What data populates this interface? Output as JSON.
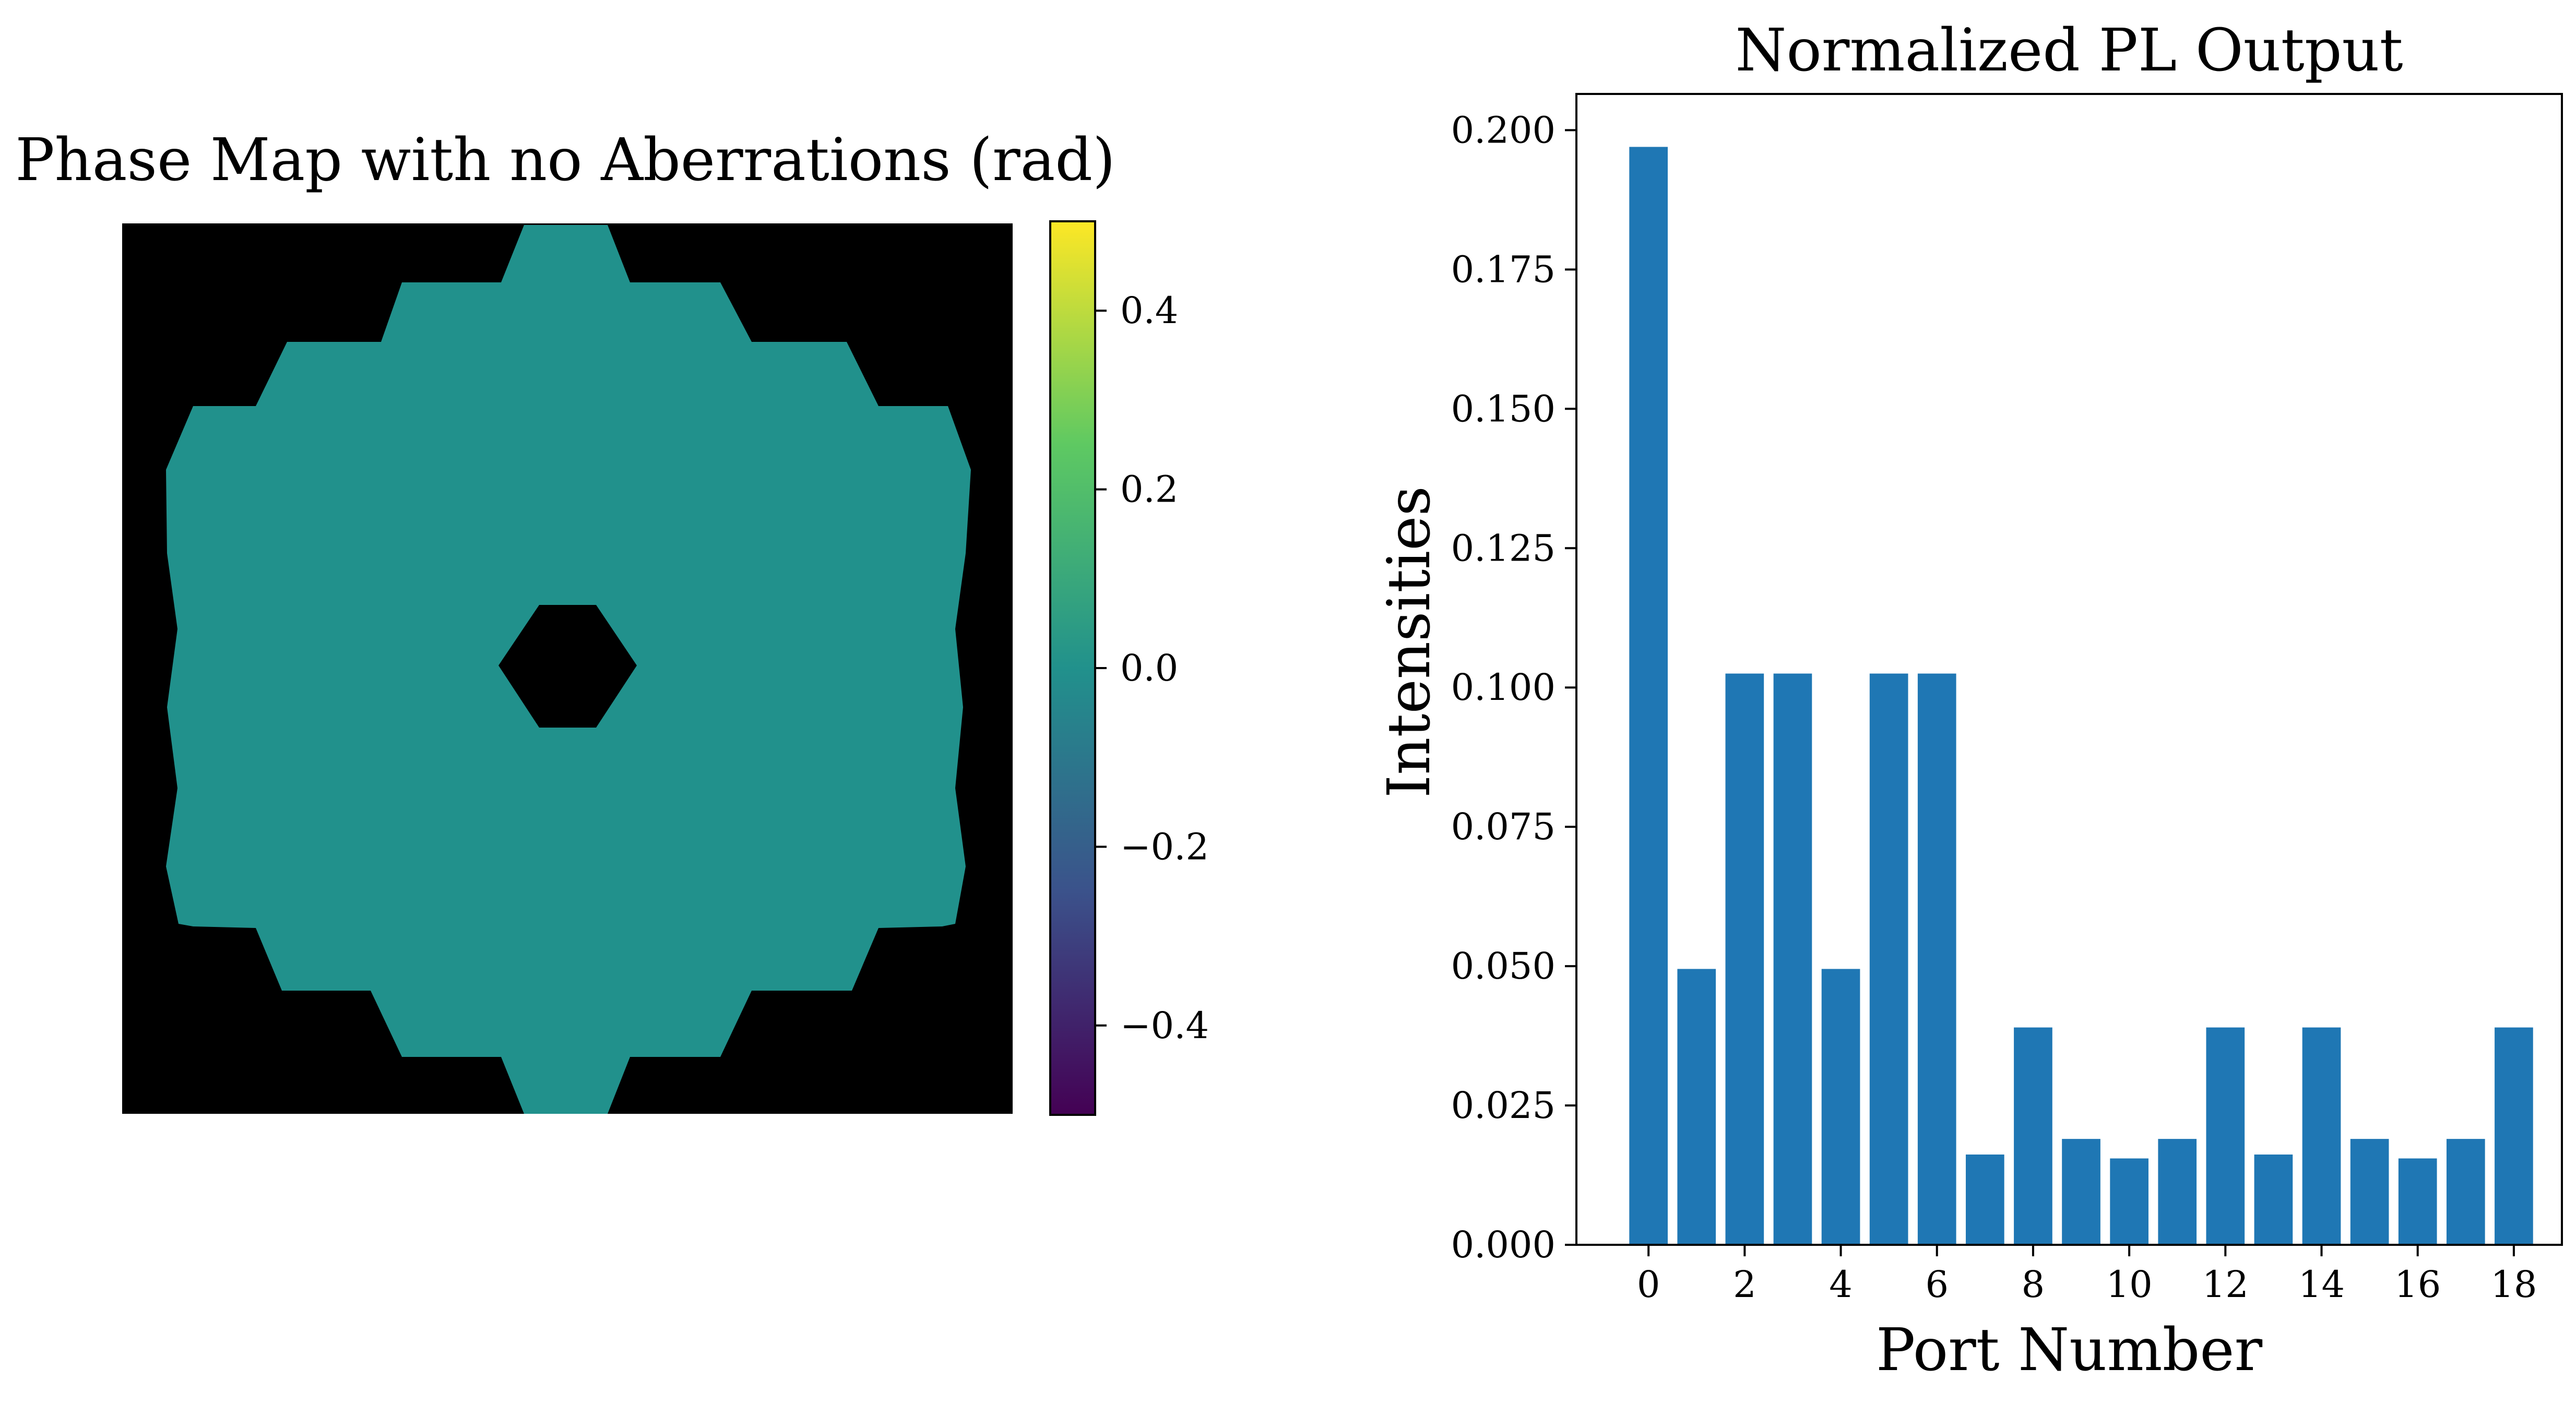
{
  "chart_data": [
    {
      "type": "heatmap",
      "title": "Phase Map with no Aberrations (rad)",
      "description_value": 0.0,
      "colorbar": {
        "colormap": "viridis",
        "range": [
          -0.5,
          0.5
        ],
        "ticks": [
          0.4,
          0.2,
          0.0,
          -0.2,
          -0.4
        ],
        "tick_labels": [
          "0.4",
          "0.2",
          "0.0",
          "−0.2",
          "−0.4"
        ]
      },
      "colors": {
        "pupil": "#21918c",
        "background": "#000000",
        "cmap_stops": [
          "#440154",
          "#3b528b",
          "#21918c",
          "#5ec962",
          "#fde725"
        ]
      }
    },
    {
      "type": "bar",
      "title": "Normalized PL Output",
      "xlabel": "Port Number",
      "ylabel": "Intensities",
      "categories": [
        0,
        1,
        2,
        3,
        4,
        5,
        6,
        7,
        8,
        9,
        10,
        11,
        12,
        13,
        14,
        15,
        16,
        17,
        18
      ],
      "values": [
        0.197,
        0.0495,
        0.1025,
        0.1025,
        0.0495,
        0.1025,
        0.1025,
        0.0162,
        0.039,
        0.019,
        0.0155,
        0.019,
        0.039,
        0.0162,
        0.039,
        0.019,
        0.0155,
        0.019,
        0.039
      ],
      "xlim": [
        -1.5,
        19.0
      ],
      "ylim": [
        0,
        0.2065
      ],
      "x_ticks": [
        0,
        2,
        4,
        6,
        8,
        10,
        12,
        14,
        16,
        18
      ],
      "x_tick_labels": [
        "0",
        "2",
        "4",
        "6",
        "8",
        "10",
        "12",
        "14",
        "16",
        "18"
      ],
      "y_ticks": [
        0.0,
        0.025,
        0.05,
        0.075,
        0.1,
        0.125,
        0.15,
        0.175,
        0.2
      ],
      "y_tick_labels": [
        "0.000",
        "0.025",
        "0.050",
        "0.075",
        "0.100",
        "0.125",
        "0.150",
        "0.175",
        "0.200"
      ],
      "bar_color": "#1f77b4"
    }
  ]
}
